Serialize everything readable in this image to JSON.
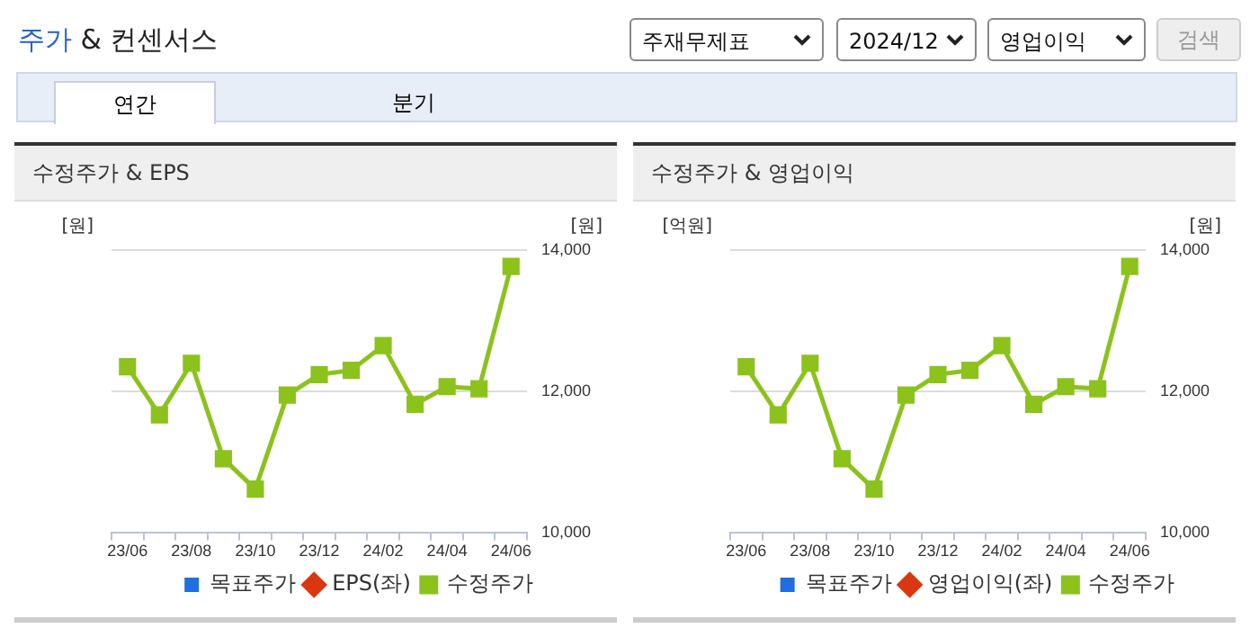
{
  "chart_data": [
    {
      "type": "other",
      "title": "주가 & 컨센서스",
      "annotations": [
        "주재무제표",
        "2024/12",
        "영업이익",
        "검색",
        "연간",
        "분기"
      ]
    },
    {
      "type": "line",
      "title": "수정주가 & EPS",
      "ylabel": "[원]",
      "y2label": "[원]",
      "categories": [
        "23/06",
        null,
        "23/08",
        null,
        "23/10",
        null,
        "23/12",
        null,
        "24/02",
        null,
        "24/04",
        null,
        "24/06"
      ],
      "series": [
        {
          "name": "목표주가",
          "type": "bar",
          "color": "#1f6fe0",
          "values": [
            null,
            null,
            null,
            null,
            null,
            null,
            null,
            null,
            null,
            null,
            null,
            null,
            null
          ]
        },
        {
          "name": "EPS(좌)",
          "color": "#d9370f",
          "marker": "diamond",
          "values": [
            null,
            null,
            null,
            null,
            null,
            null,
            null,
            null,
            null,
            null,
            null,
            null,
            null
          ]
        },
        {
          "name": "수정주가",
          "color": "#8cc21c",
          "axis": "y2",
          "marker": "square",
          "values": [
            12350,
            11670,
            12400,
            11050,
            10620,
            11950,
            12240,
            12300,
            12650,
            11820,
            12070,
            12040,
            13770
          ]
        }
      ],
      "y2lim": [
        10000,
        14000
      ],
      "y2ticks": [
        {
          "value": 10000,
          "label": "10,000"
        },
        {
          "value": 12000,
          "label": "12,000"
        },
        {
          "value": 14000,
          "label": "14,000"
        }
      ],
      "grid": "y",
      "legend": "bottom"
    },
    {
      "type": "line",
      "title": "수정주가 & 영업이익",
      "ylabel": "[억원]",
      "y2label": "[원]",
      "categories": [
        "23/06",
        null,
        "23/08",
        null,
        "23/10",
        null,
        "23/12",
        null,
        "24/02",
        null,
        "24/04",
        null,
        "24/06"
      ],
      "series": [
        {
          "name": "목표주가",
          "type": "bar",
          "color": "#1f6fe0",
          "values": [
            null,
            null,
            null,
            null,
            null,
            null,
            null,
            null,
            null,
            null,
            null,
            null,
            null
          ]
        },
        {
          "name": "영업이익(좌)",
          "color": "#d9370f",
          "marker": "diamond",
          "values": [
            null,
            null,
            null,
            null,
            null,
            null,
            null,
            null,
            null,
            null,
            null,
            null,
            null
          ]
        },
        {
          "name": "수정주가",
          "color": "#8cc21c",
          "axis": "y2",
          "marker": "square",
          "values": [
            12350,
            11670,
            12400,
            11050,
            10620,
            11950,
            12240,
            12300,
            12650,
            11820,
            12070,
            12040,
            13770
          ]
        }
      ],
      "y2lim": [
        10000,
        14000
      ],
      "y2ticks": [
        {
          "value": 10000,
          "label": "10,000"
        },
        {
          "value": 12000,
          "label": "12,000"
        },
        {
          "value": 14000,
          "label": "14,000"
        }
      ],
      "grid": "y",
      "legend": "bottom"
    }
  ]
}
